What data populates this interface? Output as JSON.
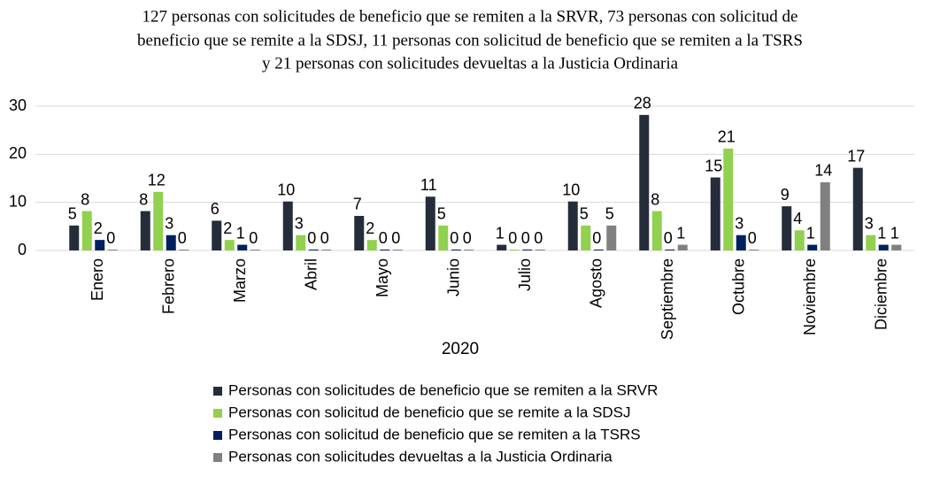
{
  "chart_data": {
    "type": "bar",
    "title": [
      "127 personas con solicitudes de beneficio que se remiten a la SRVR, 73 personas con solicitud de",
      "beneficio que se remite a la SDSJ, 11 personas con solicitud de beneficio que se remiten a la TSRS",
      "y 21 personas con solicitudes devueltas a la Justicia Ordinaria"
    ],
    "xlabel": "2020",
    "categories": [
      "Enero",
      "Febrero",
      "Marzo",
      "Abril",
      "Mayo",
      "Junio",
      "Julio",
      "Agosto",
      "Septiembre",
      "Octubre",
      "Noviembre",
      "Diciembre"
    ],
    "series": [
      {
        "name": "Personas con solicitudes de beneficio que se remiten a la SRVR",
        "color": "#252d3a",
        "values": [
          5,
          8,
          6,
          10,
          7,
          11,
          1,
          10,
          28,
          15,
          9,
          17
        ]
      },
      {
        "name": "Personas con solicitud de beneficio que se remite a la SDSJ",
        "color": "#92d050",
        "values": [
          8,
          12,
          2,
          3,
          2,
          5,
          0,
          5,
          8,
          21,
          4,
          3
        ]
      },
      {
        "name": "Personas con solicitud de beneficio que se remiten a la TSRS",
        "color": "#002060",
        "values": [
          2,
          3,
          1,
          0,
          0,
          0,
          0,
          0,
          0,
          3,
          1,
          1
        ]
      },
      {
        "name": "Personas con solicitudes devueltas a la Justicia Ordinaria",
        "color": "#808080",
        "values": [
          0,
          0,
          0,
          0,
          0,
          0,
          0,
          5,
          1,
          0,
          14,
          1
        ]
      }
    ],
    "ylim": [
      0,
      30
    ],
    "yticks": [
      0,
      10,
      20,
      30
    ],
    "grid": true,
    "legend": "bottom"
  }
}
